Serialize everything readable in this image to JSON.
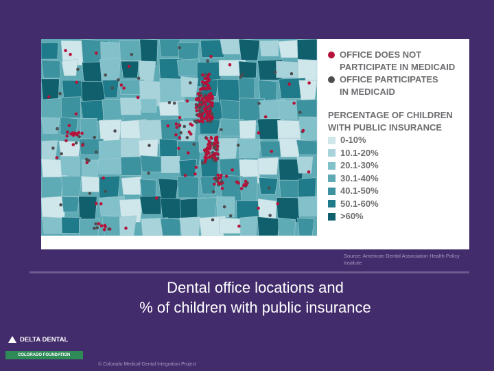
{
  "legend": {
    "office_not_participate": {
      "label_line1": "OFFICE DOES NOT",
      "label_line2": "PARTICIPATE IN MEDICAID",
      "color": "#b5123a"
    },
    "office_participate": {
      "label_line1": "OFFICE PARTICIPATES",
      "label_line2": "IN MEDICAID",
      "color": "#4d4d4f"
    },
    "percentage_title_line1": "PERCENTAGE OF CHILDREN",
    "percentage_title_line2": "WITH PUBLIC INSURANCE",
    "ranges": [
      {
        "label": "0-10%",
        "color": "#cfe6ea"
      },
      {
        "label": "10.1-20%",
        "color": "#a8d3da"
      },
      {
        "label": "20.1-30%",
        "color": "#82c0ca"
      },
      {
        "label": "30.1-40%",
        "color": "#5eaab5"
      },
      {
        "label": "40.1-50%",
        "color": "#3d929f"
      },
      {
        "label": "50.1-60%",
        "color": "#1f7a89"
      },
      {
        "label": ">60%",
        "color": "#0f5f6d"
      }
    ]
  },
  "source": "Source: American Dental Association Health Policy Institute",
  "caption": {
    "line1": "Dental office locations and",
    "line2": "% of children with public insurance"
  },
  "logo": {
    "name": "DELTA DENTAL",
    "subtitle": "COLORADO FOUNDATION"
  },
  "copyright": "© Colorado Medical-Dental Integration Project"
}
